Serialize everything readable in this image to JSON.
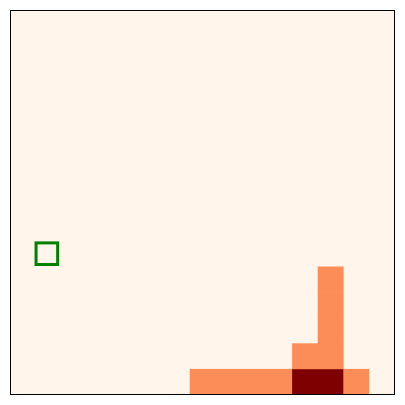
{
  "chart_data": {
    "type": "heatmap",
    "rows": 15,
    "cols": 15,
    "value_range": [
      0,
      2
    ],
    "colormap": [
      "#fff5eb",
      "#fc8d59",
      "#7f0000"
    ],
    "cells": [
      {
        "row": 14,
        "col": 7,
        "value": 1
      },
      {
        "row": 14,
        "col": 8,
        "value": 1
      },
      {
        "row": 14,
        "col": 9,
        "value": 1
      },
      {
        "row": 14,
        "col": 10,
        "value": 1
      },
      {
        "row": 14,
        "col": 11,
        "value": 2
      },
      {
        "row": 14,
        "col": 12,
        "value": 2
      },
      {
        "row": 14,
        "col": 13,
        "value": 1
      },
      {
        "row": 13,
        "col": 11,
        "value": 1
      },
      {
        "row": 13,
        "col": 12,
        "value": 1
      },
      {
        "row": 12,
        "col": 12,
        "value": 1
      },
      {
        "row": 11,
        "col": 12,
        "value": 1
      },
      {
        "row": 10,
        "col": 12,
        "value": 1
      }
    ],
    "marker": {
      "row": 9,
      "col": 1,
      "color": "#008000",
      "shape": "square-outline"
    },
    "grid": false,
    "ticks": false
  }
}
